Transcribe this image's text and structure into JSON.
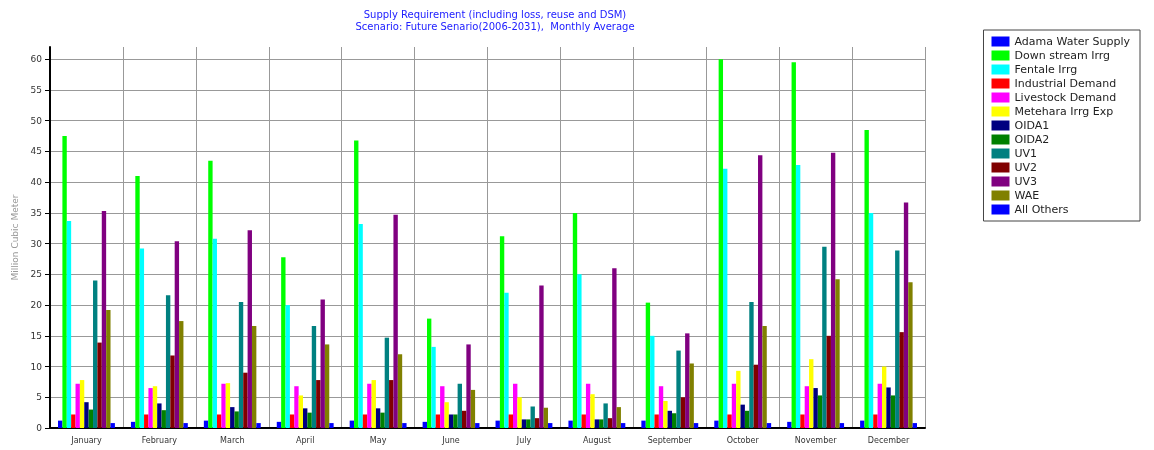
{
  "chart_data": {
    "type": "bar",
    "title": "Supply Requirement (including loss, reuse and DSM)",
    "subtitle": "Scenario: Future Senario(2006-2031),  Monthly Average",
    "ylabel": "Million Cubic Meter",
    "categories": [
      "January",
      "February",
      "March",
      "April",
      "May",
      "June",
      "July",
      "August",
      "September",
      "October",
      "November",
      "December"
    ],
    "series": [
      {
        "name": "Adama Water Supply",
        "color": "#0000ff",
        "values": [
          1.2,
          1.0,
          1.2,
          1.0,
          1.2,
          1.0,
          1.2,
          1.2,
          1.2,
          1.2,
          1.0,
          1.2
        ]
      },
      {
        "name": "Down stream Irrg",
        "color": "#00ff00",
        "values": [
          47.5,
          41,
          43.5,
          27.8,
          46.8,
          17.8,
          31.2,
          35,
          20.4,
          60,
          59.5,
          48.5
        ]
      },
      {
        "name": "Fentale Irrg",
        "color": "#00ffff",
        "values": [
          33.7,
          29.2,
          30.8,
          20,
          33.2,
          13.2,
          22,
          25,
          15,
          42.2,
          42.8,
          35
        ]
      },
      {
        "name": "Industrial Demand",
        "color": "#ff0000",
        "values": [
          2.2,
          2.2,
          2.2,
          2.2,
          2.2,
          2.2,
          2.2,
          2.2,
          2.2,
          2.2,
          2.2,
          2.2
        ]
      },
      {
        "name": "Livestock Demand",
        "color": "#ff00ff",
        "values": [
          7.2,
          6.5,
          7.2,
          6.8,
          7.2,
          6.8,
          7.2,
          7.2,
          6.8,
          7.2,
          6.8,
          7.2
        ]
      },
      {
        "name": "Metehara Irrg Exp",
        "color": "#ffff00",
        "values": [
          7.8,
          6.8,
          7.3,
          5.3,
          7.8,
          4.2,
          5,
          5.5,
          4.4,
          9.3,
          11.2,
          10
        ]
      },
      {
        "name": "OIDA1",
        "color": "#000080",
        "values": [
          4.2,
          4.0,
          3.4,
          3.2,
          3.2,
          2.2,
          1.4,
          1.4,
          2.8,
          3.8,
          6.5,
          6.6
        ]
      },
      {
        "name": "OIDA2",
        "color": "#008000",
        "values": [
          3.0,
          2.9,
          2.7,
          2.5,
          2.5,
          2.2,
          1.4,
          1.4,
          2.4,
          2.8,
          5.3,
          5.3
        ]
      },
      {
        "name": "UV1",
        "color": "#008080",
        "values": [
          24,
          21.6,
          20.5,
          16.6,
          14.7,
          7.2,
          3.5,
          4.0,
          12.6,
          20.5,
          29.5,
          28.9
        ]
      },
      {
        "name": "UV2",
        "color": "#800000",
        "values": [
          13.9,
          11.8,
          9.0,
          7.8,
          7.8,
          2.8,
          1.6,
          1.6,
          5.0,
          10.3,
          15,
          15.6
        ]
      },
      {
        "name": "UV3",
        "color": "#800080",
        "values": [
          35.3,
          30.4,
          32.2,
          20.9,
          34.7,
          13.6,
          23.2,
          26,
          15.4,
          44.4,
          44.8,
          36.7
        ]
      },
      {
        "name": "WAE",
        "color": "#808000",
        "values": [
          19.2,
          17.4,
          16.6,
          13.6,
          12,
          6.2,
          3.3,
          3.4,
          10.5,
          16.6,
          24.2,
          23.7
        ]
      },
      {
        "name": "All Others",
        "color": "#0000ff",
        "values": [
          0.8,
          0.8,
          0.8,
          0.8,
          0.8,
          0.8,
          0.8,
          0.8,
          0.8,
          0.8,
          0.8,
          0.8
        ]
      }
    ],
    "ylim": [
      0,
      62
    ],
    "yticks": [
      0,
      5,
      10,
      15,
      20,
      25,
      30,
      35,
      40,
      45,
      50,
      55,
      60
    ],
    "grid": true,
    "legend": "top right"
  }
}
